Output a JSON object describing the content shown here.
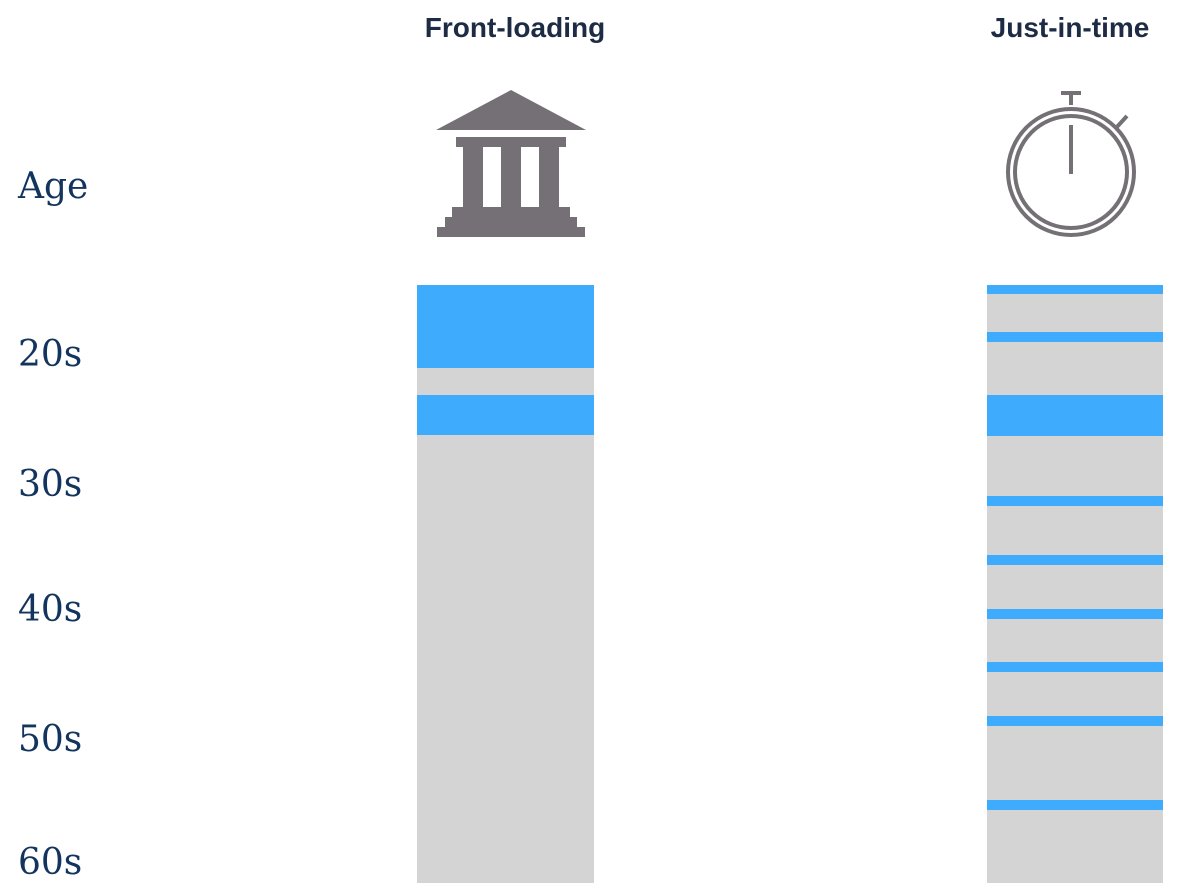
{
  "columns": [
    {
      "title": "Front-loading"
    },
    {
      "title": "Just-in-time"
    }
  ],
  "axis": {
    "title": "Age",
    "labels": [
      "20s",
      "30s",
      "40s",
      "50s",
      "60s"
    ]
  }
}
